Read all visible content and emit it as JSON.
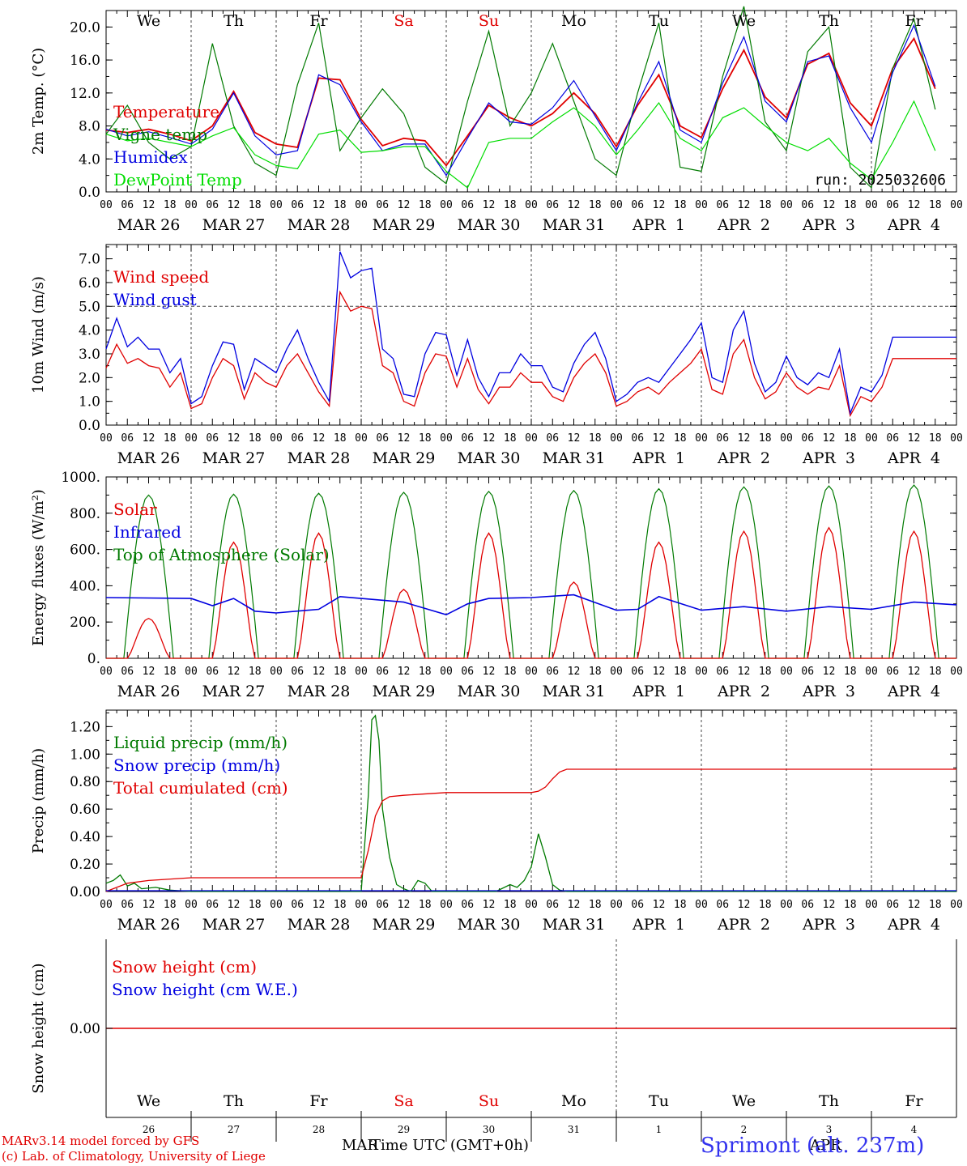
{
  "footer": {
    "model": "MARv3.14 model forced by GFS",
    "copyright": "(c) Lab. of Climatology, University of Liege",
    "xlabel": "Time UTC (GMT+0h)",
    "month_overlap": "MAR",
    "month_overlap2": "APR",
    "station": "Sprimont (alt. 237m)"
  },
  "run_label": "run: 2025032606",
  "days": [
    "We",
    "Th",
    "Fr",
    "Sa",
    "Su",
    "Mo",
    "Tu",
    "We",
    "Th",
    "Fr"
  ],
  "day_colors": [
    "#000000",
    "#000000",
    "#000000",
    "#e00000",
    "#e00000",
    "#000000",
    "#000000",
    "#000000",
    "#000000",
    "#000000"
  ],
  "dates": [
    "MAR 26",
    "MAR 27",
    "MAR 28",
    "MAR 29",
    "MAR 30",
    "MAR 31",
    "APR  1",
    "APR  2",
    "APR  3",
    "APR  4"
  ],
  "day_numbers": [
    "26",
    "27",
    "28",
    "29",
    "30",
    "31",
    "1",
    "2",
    "3",
    "4"
  ],
  "hour_ticks": [
    "00",
    "06",
    "12",
    "18"
  ],
  "hour_end": "00",
  "colors": {
    "red": "#e00000",
    "blue": "#0000e0",
    "green": "#007a00",
    "lightgreen": "#00dd00"
  },
  "chart_data": [
    {
      "type": "line",
      "ylabel": "2m Temp. (°C)",
      "ylim": [
        0,
        22
      ],
      "yticks": [
        "0.0",
        "4.0",
        "8.0",
        "12.0",
        "16.0",
        "20.0"
      ],
      "x_unit": "hours since MAR 26 00 UTC",
      "legend": [
        "Temperature",
        "Vigne temp",
        "Humidex",
        "DewPoint Temp"
      ],
      "series": [
        {
          "name": "Temperature",
          "color": "red",
          "x": [
            0,
            6,
            12,
            18,
            24,
            30,
            36,
            42,
            48,
            54,
            60,
            66,
            72,
            78,
            84,
            90,
            96,
            102,
            108,
            114,
            120,
            126,
            132,
            138,
            144,
            150,
            156,
            162,
            168,
            174,
            180,
            186,
            192,
            198,
            204,
            210,
            216,
            222,
            228,
            234
          ],
          "y": [
            7.5,
            7.2,
            7.6,
            7.0,
            6.2,
            8.0,
            12.2,
            7.2,
            5.8,
            5.4,
            13.8,
            13.6,
            8.8,
            5.6,
            6.5,
            6.2,
            3.2,
            6.8,
            10.5,
            9.0,
            8.0,
            9.5,
            12.0,
            9.5,
            5.5,
            10.5,
            14.2,
            8.0,
            6.6,
            12.5,
            17.2,
            11.5,
            9.0,
            15.5,
            16.8,
            10.8,
            8.0,
            15.0,
            18.6,
            12.5
          ]
        },
        {
          "name": "Vigne temp",
          "color": "green",
          "x": [
            0,
            6,
            12,
            18,
            24,
            30,
            36,
            42,
            48,
            54,
            60,
            66,
            72,
            78,
            84,
            90,
            96,
            102,
            108,
            114,
            120,
            126,
            132,
            138,
            144,
            150,
            156,
            162,
            168,
            174,
            180,
            186,
            192,
            198,
            204,
            210,
            216,
            222,
            228,
            234
          ],
          "y": [
            7.0,
            10.5,
            6.0,
            4.0,
            5.5,
            18.0,
            8.0,
            3.5,
            2.0,
            13.0,
            20.5,
            5.0,
            9.0,
            12.5,
            9.5,
            3.0,
            1.0,
            11.0,
            19.5,
            8.0,
            12.0,
            18.0,
            11.0,
            4.0,
            2.0,
            12.0,
            20.5,
            3.0,
            2.5,
            14.0,
            22.5,
            8.5,
            5.0,
            17.0,
            20.0,
            3.0,
            0.5,
            15.0,
            21.0,
            10.0
          ]
        },
        {
          "name": "Humidex",
          "color": "blue",
          "x": [
            0,
            6,
            12,
            18,
            24,
            30,
            36,
            42,
            48,
            54,
            60,
            66,
            72,
            78,
            84,
            90,
            96,
            102,
            108,
            114,
            120,
            126,
            132,
            138,
            144,
            150,
            156,
            162,
            168,
            174,
            180,
            186,
            192,
            198,
            204,
            210,
            216,
            222,
            228,
            234
          ],
          "y": [
            7.6,
            6.8,
            7.3,
            6.6,
            5.8,
            7.6,
            12.0,
            6.8,
            4.5,
            5.0,
            14.2,
            13.0,
            8.5,
            5.0,
            5.8,
            5.8,
            2.0,
            6.5,
            10.8,
            8.5,
            8.2,
            10.2,
            13.5,
            9.2,
            5.0,
            10.8,
            15.8,
            7.5,
            6.0,
            13.2,
            18.8,
            11.0,
            8.5,
            15.8,
            16.5,
            10.2,
            6.0,
            14.5,
            20.2,
            12.8
          ]
        },
        {
          "name": "DewPoint Temp",
          "color": "lightgreen",
          "x": [
            0,
            6,
            12,
            18,
            24,
            30,
            36,
            42,
            48,
            54,
            60,
            66,
            72,
            78,
            84,
            90,
            96,
            102,
            108,
            114,
            120,
            126,
            132,
            138,
            144,
            150,
            156,
            162,
            168,
            174,
            180,
            186,
            192,
            198,
            204,
            210,
            216,
            222,
            228,
            234
          ],
          "y": [
            7.0,
            6.2,
            6.5,
            6.0,
            5.5,
            6.8,
            7.8,
            4.5,
            3.2,
            2.8,
            7.0,
            7.5,
            4.8,
            5.0,
            5.5,
            5.5,
            2.5,
            0.5,
            6.0,
            6.5,
            6.5,
            8.5,
            10.2,
            8.0,
            4.5,
            7.5,
            10.8,
            6.5,
            5.0,
            9.0,
            10.2,
            8.0,
            6.0,
            5.0,
            6.5,
            3.5,
            1.5,
            6.0,
            11.0,
            5.0
          ]
        }
      ]
    },
    {
      "type": "line",
      "ylabel": "10m Wind (m/s)",
      "ylim": [
        0,
        7.6
      ],
      "yticks": [
        "0.0",
        "1.0",
        "2.0",
        "3.0",
        "4.0",
        "5.0",
        "6.0",
        "7.0"
      ],
      "refline": 5.0,
      "legend": [
        "Wind speed",
        "Wind gust"
      ],
      "series": [
        {
          "name": "Wind speed",
          "color": "red",
          "x": [
            0,
            3,
            6,
            9,
            12,
            15,
            18,
            21,
            24,
            27,
            30,
            33,
            36,
            39,
            42,
            45,
            48,
            51,
            54,
            57,
            60,
            63,
            66,
            69,
            72,
            75,
            78,
            81,
            84,
            87,
            90,
            93,
            96,
            99,
            102,
            105,
            108,
            111,
            114,
            117,
            120,
            123,
            126,
            129,
            132,
            135,
            138,
            141,
            144,
            147,
            150,
            153,
            156,
            159,
            162,
            165,
            168,
            171,
            174,
            177,
            180,
            183,
            186,
            189,
            192,
            195,
            198,
            201,
            204,
            207,
            210,
            213,
            216,
            219,
            222,
            225,
            228,
            231,
            234,
            237,
            240
          ],
          "y": [
            2.4,
            3.4,
            2.6,
            2.8,
            2.5,
            2.4,
            1.6,
            2.2,
            0.7,
            0.9,
            2.0,
            2.8,
            2.5,
            1.1,
            2.2,
            1.8,
            1.6,
            2.5,
            3.0,
            2.2,
            1.4,
            0.8,
            5.6,
            4.8,
            5.0,
            4.9,
            2.5,
            2.2,
            1.0,
            0.8,
            2.2,
            3.0,
            2.9,
            1.6,
            2.8,
            1.5,
            0.9,
            1.6,
            1.6,
            2.2,
            1.8,
            1.8,
            1.2,
            1.0,
            2.0,
            2.6,
            3.0,
            2.2,
            0.8,
            1.0,
            1.4,
            1.6,
            1.3,
            1.8,
            2.2,
            2.6,
            3.2,
            1.5,
            1.3,
            3.0,
            3.6,
            2.0,
            1.1,
            1.4,
            2.2,
            1.6,
            1.3,
            1.6,
            1.5,
            2.5,
            0.4,
            1.2,
            1.0,
            1.6,
            2.8,
            2.8,
            2.8,
            2.8,
            2.8,
            2.8,
            2.8
          ]
        },
        {
          "name": "Wind gust",
          "color": "blue",
          "x": [
            0,
            3,
            6,
            9,
            12,
            15,
            18,
            21,
            24,
            27,
            30,
            33,
            36,
            39,
            42,
            45,
            48,
            51,
            54,
            57,
            60,
            63,
            66,
            69,
            72,
            75,
            78,
            81,
            84,
            87,
            90,
            93,
            96,
            99,
            102,
            105,
            108,
            111,
            114,
            117,
            120,
            123,
            126,
            129,
            132,
            135,
            138,
            141,
            144,
            147,
            150,
            153,
            156,
            159,
            162,
            165,
            168,
            171,
            174,
            177,
            180,
            183,
            186,
            189,
            192,
            195,
            198,
            201,
            204,
            207,
            210,
            213,
            216,
            219,
            222,
            225,
            228,
            231,
            234,
            237,
            240
          ],
          "y": [
            3.2,
            4.5,
            3.3,
            3.7,
            3.2,
            3.2,
            2.2,
            2.8,
            0.9,
            1.2,
            2.5,
            3.5,
            3.4,
            1.5,
            2.8,
            2.5,
            2.2,
            3.2,
            4.0,
            2.8,
            1.8,
            1.0,
            7.3,
            6.2,
            6.5,
            6.6,
            3.2,
            2.8,
            1.3,
            1.2,
            3.0,
            3.9,
            3.8,
            2.1,
            3.6,
            2.0,
            1.2,
            2.2,
            2.2,
            3.0,
            2.5,
            2.5,
            1.6,
            1.4,
            2.6,
            3.4,
            3.9,
            2.8,
            1.0,
            1.3,
            1.8,
            2.0,
            1.8,
            2.4,
            3.0,
            3.6,
            4.3,
            2.0,
            1.8,
            4.0,
            4.8,
            2.6,
            1.4,
            1.8,
            2.9,
            2.0,
            1.7,
            2.2,
            2.0,
            3.2,
            0.5,
            1.6,
            1.4,
            2.1,
            3.7,
            3.7,
            3.7,
            3.7,
            3.7,
            3.7,
            3.7
          ]
        }
      ]
    },
    {
      "type": "line",
      "ylabel": "Energy fluxes (W/m²)",
      "ylim": [
        0,
        1000
      ],
      "yticks": [
        "0.",
        "200.",
        "400.",
        "600.",
        "800.",
        "1000."
      ],
      "legend": [
        "Solar",
        "Infrared",
        "Top of Atmosphere (Solar)"
      ],
      "toa_peaks": [
        900,
        905,
        910,
        915,
        920,
        925,
        935,
        945,
        950,
        955
      ],
      "solar_peaks": [
        220,
        640,
        690,
        380,
        690,
        420,
        640,
        700,
        720,
        700
      ],
      "infrared": {
        "x": [
          0,
          24,
          30,
          36,
          42,
          48,
          60,
          66,
          72,
          78,
          84,
          96,
          102,
          108,
          120,
          132,
          144,
          150,
          156,
          168,
          180,
          192,
          204,
          216,
          228,
          240
        ],
        "y": [
          335,
          330,
          290,
          330,
          260,
          250,
          270,
          340,
          330,
          320,
          310,
          240,
          300,
          330,
          335,
          350,
          265,
          270,
          340,
          265,
          285,
          260,
          285,
          270,
          310,
          295
        ]
      }
    },
    {
      "type": "line",
      "ylabel": "Precip (mm/h)",
      "ylim": [
        0,
        1.32
      ],
      "yticks": [
        "0.00",
        "0.20",
        "0.40",
        "0.60",
        "0.80",
        "1.00",
        "1.20"
      ],
      "legend": [
        "Liquid precip (mm/h)",
        "Snow precip (mm/h)",
        "Total cumulated (cm)"
      ],
      "series": [
        {
          "name": "Liquid precip (mm/h)",
          "color": "green",
          "x": [
            0,
            2,
            4,
            6,
            8,
            10,
            14,
            18,
            24,
            36,
            48,
            60,
            70,
            72,
            74,
            75,
            76,
            77,
            78,
            80,
            82,
            84,
            86,
            88,
            90,
            92,
            96,
            110,
            114,
            116,
            118,
            120,
            122,
            124,
            126,
            128,
            130,
            140,
            240
          ],
          "y": [
            0.06,
            0.08,
            0.12,
            0.04,
            0.06,
            0.02,
            0.03,
            0.01,
            0.0,
            0.0,
            0.0,
            0.0,
            0.0,
            0.0,
            0.7,
            1.25,
            1.28,
            1.1,
            0.6,
            0.25,
            0.05,
            0.02,
            0.0,
            0.08,
            0.06,
            0.0,
            0.0,
            0.0,
            0.05,
            0.03,
            0.08,
            0.18,
            0.42,
            0.25,
            0.05,
            0.01,
            0.0,
            0.0,
            0.0
          ]
        },
        {
          "name": "Total cumulated (cm)",
          "color": "red",
          "x": [
            0,
            6,
            12,
            24,
            48,
            72,
            74,
            76,
            78,
            80,
            84,
            96,
            120,
            122,
            124,
            126,
            128,
            130,
            132,
            144,
            240
          ],
          "y": [
            0.0,
            0.06,
            0.08,
            0.1,
            0.1,
            0.1,
            0.3,
            0.55,
            0.66,
            0.69,
            0.7,
            0.72,
            0.72,
            0.73,
            0.76,
            0.82,
            0.87,
            0.89,
            0.89,
            0.89,
            0.89
          ]
        }
      ]
    },
    {
      "type": "line",
      "ylabel": "Snow height (cm)",
      "yticks": [
        "0.00"
      ],
      "legend": [
        "Snow height (cm)",
        "Snow height (cm W.E.)"
      ],
      "series": [
        {
          "name": "Snow height (cm)",
          "color": "red",
          "x": [
            0,
            240
          ],
          "y": [
            0,
            0
          ]
        }
      ]
    }
  ]
}
